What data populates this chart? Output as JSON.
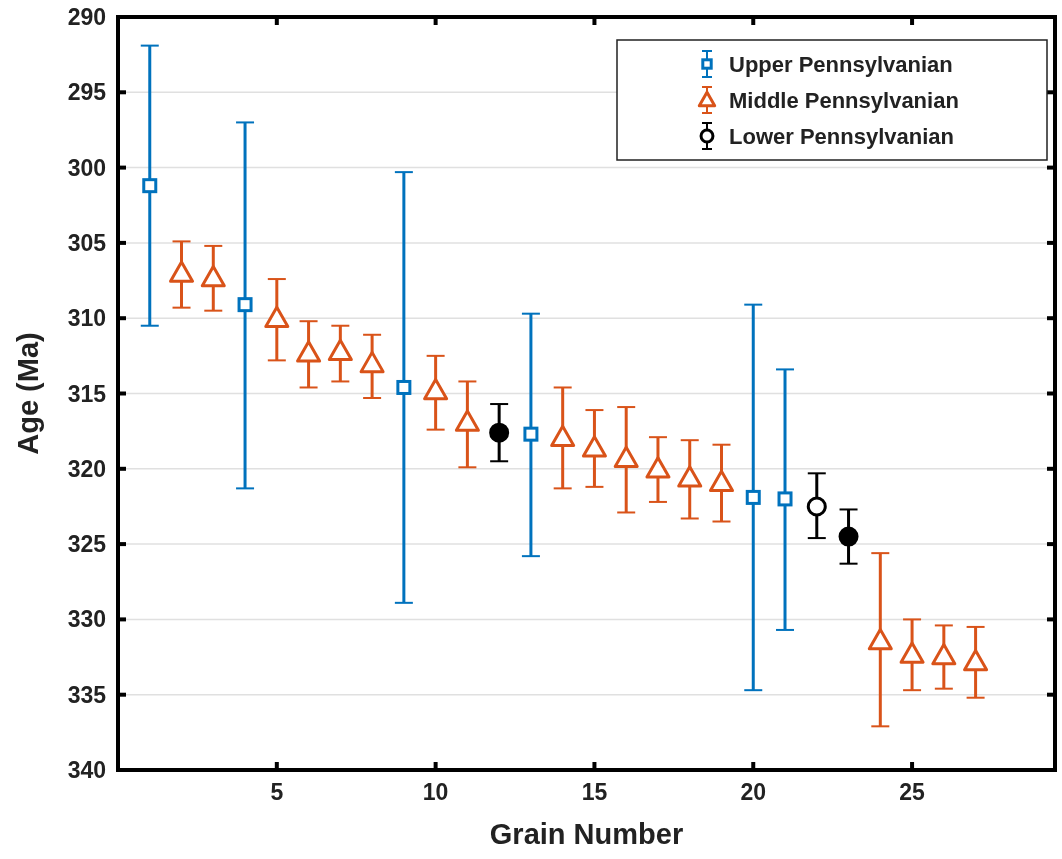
{
  "chart_data": {
    "type": "scatter",
    "xlabel": "Grain Number",
    "ylabel": "Age (Ma)",
    "xlim": [
      0,
      29.5
    ],
    "xticks": [
      5,
      10,
      15,
      20,
      25
    ],
    "ylim": [
      340,
      290
    ],
    "yticks": [
      290,
      295,
      300,
      305,
      310,
      315,
      320,
      325,
      330,
      335,
      340
    ],
    "grid": "y",
    "legend": "top right",
    "series": [
      {
        "name": "Upper Pennsylvanian",
        "color": "#0072bd",
        "marker": "square",
        "x": [
          1,
          4,
          9,
          13,
          20,
          21
        ],
        "values": [
          301.2,
          309.1,
          314.6,
          317.7,
          321.9,
          322.0
        ],
        "errors": [
          [
            291.9,
            310.5
          ],
          [
            297.0,
            321.3
          ],
          [
            300.3,
            328.9
          ],
          [
            309.7,
            325.8
          ],
          [
            309.1,
            334.7
          ],
          [
            313.4,
            330.7
          ]
        ]
      },
      {
        "name": "Middle Pennsylvanian",
        "color": "#d95319",
        "marker": "triangle",
        "x": [
          2,
          3,
          5,
          6,
          7,
          8,
          10,
          11,
          14,
          15,
          16,
          17,
          18,
          19,
          24,
          25,
          26,
          27
        ],
        "values": [
          307.0,
          307.3,
          310.0,
          312.3,
          312.2,
          313.0,
          314.8,
          316.9,
          317.9,
          318.6,
          319.3,
          320.0,
          320.6,
          320.9,
          331.4,
          332.3,
          332.4,
          332.8
        ],
        "errors": [
          [
            304.9,
            309.3
          ],
          [
            305.2,
            309.5
          ],
          [
            307.4,
            312.8
          ],
          [
            310.2,
            314.6
          ],
          [
            310.5,
            314.2
          ],
          [
            311.1,
            315.3
          ],
          [
            312.5,
            317.4
          ],
          [
            314.2,
            319.9
          ],
          [
            314.6,
            321.3
          ],
          [
            316.1,
            321.2
          ],
          [
            315.9,
            322.9
          ],
          [
            317.9,
            322.2
          ],
          [
            318.1,
            323.3
          ],
          [
            318.4,
            323.5
          ],
          [
            325.6,
            337.1
          ],
          [
            330.0,
            334.7
          ],
          [
            330.4,
            334.6
          ],
          [
            330.5,
            335.2
          ]
        ]
      },
      {
        "name": "Lower Pennsylvanian",
        "color": "#000000",
        "marker": "circle",
        "x": [
          22
        ],
        "values": [
          322.5
        ],
        "errors": [
          [
            320.3,
            324.6
          ]
        ]
      },
      {
        "color": "#000000",
        "marker": "circle",
        "x": [
          12,
          23
        ],
        "values": [
          317.6,
          324.5
        ],
        "errors": [
          [
            315.7,
            319.5
          ],
          [
            322.7,
            326.3
          ]
        ]
      }
    ]
  }
}
